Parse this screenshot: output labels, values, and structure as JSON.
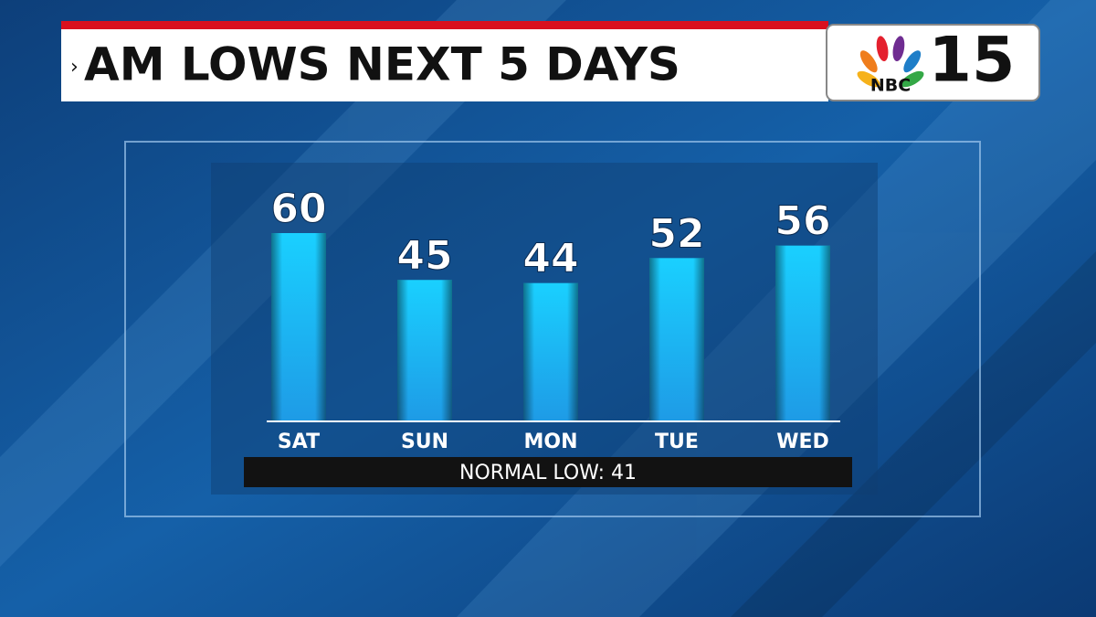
{
  "chart_data": {
    "type": "bar",
    "title": "AM LOWS NEXT 5 DAYS",
    "categories": [
      "SAT",
      "SUN",
      "MON",
      "TUE",
      "WED"
    ],
    "values": [
      60,
      45,
      44,
      52,
      56
    ],
    "color": "#1e9be6",
    "annotation": "NORMAL LOW: 41"
  },
  "logo": {
    "network": "NBC",
    "channel": "15"
  }
}
